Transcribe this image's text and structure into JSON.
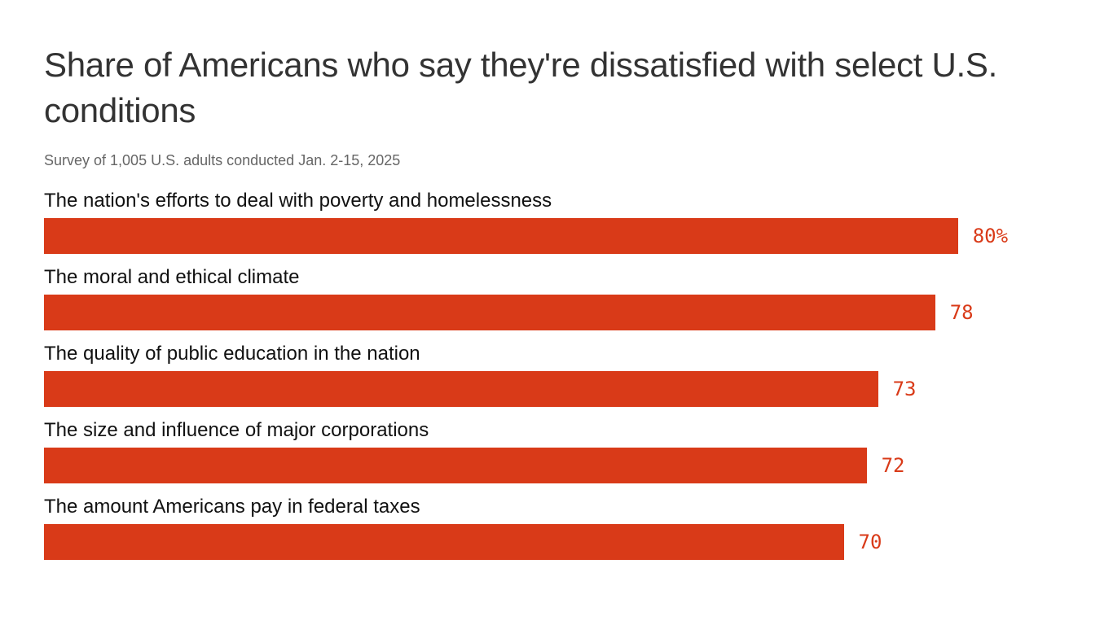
{
  "chart_data": {
    "type": "bar",
    "orientation": "horizontal",
    "title": "Share of Americans who say they're dissatisfied with select U.S. conditions",
    "subtitle": "Survey of 1,005 U.S. adults conducted Jan. 2-15, 2025",
    "categories": [
      "The nation's efforts to deal with poverty and homelessness",
      "The moral and ethical climate",
      "The quality of public education in the nation",
      "The size and influence of major corporations",
      "The amount Americans pay in federal taxes"
    ],
    "values": [
      80,
      78,
      73,
      72,
      70
    ],
    "value_labels": [
      "80%",
      "78",
      "73",
      "72",
      "70"
    ],
    "unit": "%",
    "xlim": [
      0,
      92
    ],
    "xlabel": "",
    "ylabel": "",
    "grid": false,
    "legend": "none",
    "colors": {
      "bar": "#D93A18",
      "value_label": "#D93A18"
    }
  }
}
